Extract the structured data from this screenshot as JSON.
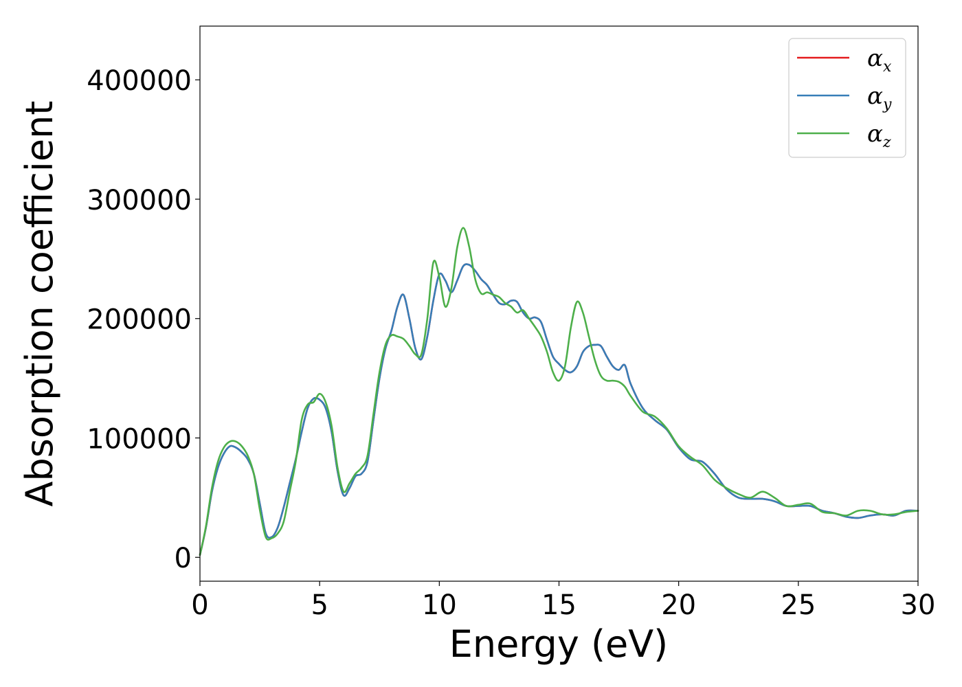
{
  "chart_data": {
    "type": "line",
    "title": "",
    "xlabel": "Energy (eV)",
    "ylabel": "Absorption coefficient",
    "xlim": [
      0,
      30
    ],
    "ylim": [
      -20000,
      445000
    ],
    "xticks": [
      0,
      5,
      10,
      15,
      20,
      25,
      30
    ],
    "yticks": [
      0,
      100000,
      200000,
      300000,
      400000
    ],
    "xtick_labels": [
      "0",
      "5",
      "10",
      "15",
      "20",
      "25",
      "30"
    ],
    "ytick_labels": [
      "0",
      "100000",
      "200000",
      "300000",
      "400000"
    ],
    "grid": false,
    "legend_position": "top-right",
    "series": [
      {
        "name": "α",
        "subscript": "x",
        "color": "#e41a1c",
        "x": [
          0,
          0.25,
          0.5,
          0.75,
          1.0,
          1.25,
          1.5,
          1.75,
          2.0,
          2.25,
          2.5,
          2.75,
          3.0,
          3.25,
          3.5,
          3.75,
          4.0,
          4.25,
          4.5,
          4.75,
          5.0,
          5.25,
          5.5,
          5.75,
          6.0,
          6.25,
          6.5,
          6.75,
          7.0,
          7.25,
          7.5,
          7.75,
          8.0,
          8.25,
          8.5,
          8.75,
          9.0,
          9.25,
          9.5,
          9.75,
          10.0,
          10.25,
          10.5,
          10.75,
          11.0,
          11.25,
          11.5,
          11.75,
          12.0,
          12.25,
          12.5,
          12.75,
          13.0,
          13.25,
          13.5,
          13.75,
          14.0,
          14.25,
          14.5,
          14.75,
          15.0,
          15.25,
          15.5,
          15.75,
          16.0,
          16.25,
          16.5,
          16.75,
          17.0,
          17.25,
          17.5,
          17.75,
          18.0,
          18.5,
          19.0,
          19.5,
          20.0,
          20.5,
          21.0,
          21.5,
          22.0,
          22.5,
          23.0,
          23.5,
          24.0,
          24.5,
          25.0,
          25.5,
          26.0,
          26.5,
          27.0,
          27.5,
          28.0,
          28.5,
          29.0,
          29.5,
          30.0
        ],
        "values": [
          2000,
          25000,
          55000,
          75000,
          87000,
          93000,
          92000,
          88000,
          82000,
          70000,
          45000,
          20000,
          17000,
          25000,
          42000,
          62000,
          82000,
          105000,
          125000,
          133000,
          132000,
          125000,
          105000,
          72000,
          52000,
          58000,
          68000,
          70000,
          80000,
          115000,
          150000,
          175000,
          190000,
          210000,
          220000,
          200000,
          175000,
          166000,
          185000,
          215000,
          237000,
          232000,
          222000,
          232000,
          244000,
          245000,
          240000,
          233000,
          228000,
          220000,
          213000,
          212000,
          215000,
          214000,
          205000,
          200000,
          201000,
          197000,
          182000,
          168000,
          162000,
          157000,
          155000,
          160000,
          172000,
          177000,
          178000,
          177000,
          168000,
          160000,
          157000,
          161000,
          145000,
          125000,
          115000,
          107000,
          92000,
          82000,
          80000,
          70000,
          57000,
          50000,
          49000,
          49000,
          47000,
          43000,
          43000,
          43000,
          39000,
          37000,
          34000,
          33000,
          35000,
          36000,
          35000,
          39000,
          39000
        ]
      },
      {
        "name": "α",
        "subscript": "y",
        "color": "#377eb8",
        "x": [
          0,
          0.25,
          0.5,
          0.75,
          1.0,
          1.25,
          1.5,
          1.75,
          2.0,
          2.25,
          2.5,
          2.75,
          3.0,
          3.25,
          3.5,
          3.75,
          4.0,
          4.25,
          4.5,
          4.75,
          5.0,
          5.25,
          5.5,
          5.75,
          6.0,
          6.25,
          6.5,
          6.75,
          7.0,
          7.25,
          7.5,
          7.75,
          8.0,
          8.25,
          8.5,
          8.75,
          9.0,
          9.25,
          9.5,
          9.75,
          10.0,
          10.25,
          10.5,
          10.75,
          11.0,
          11.25,
          11.5,
          11.75,
          12.0,
          12.25,
          12.5,
          12.75,
          13.0,
          13.25,
          13.5,
          13.75,
          14.0,
          14.25,
          14.5,
          14.75,
          15.0,
          15.25,
          15.5,
          15.75,
          16.0,
          16.25,
          16.5,
          16.75,
          17.0,
          17.25,
          17.5,
          17.75,
          18.0,
          18.5,
          19.0,
          19.5,
          20.0,
          20.5,
          21.0,
          21.5,
          22.0,
          22.5,
          23.0,
          23.5,
          24.0,
          24.5,
          25.0,
          25.5,
          26.0,
          26.5,
          27.0,
          27.5,
          28.0,
          28.5,
          29.0,
          29.5,
          30.0
        ],
        "values": [
          2000,
          25000,
          55000,
          75000,
          87000,
          93000,
          92000,
          88000,
          82000,
          70000,
          45000,
          20000,
          17000,
          25000,
          42000,
          62000,
          82000,
          105000,
          125000,
          133000,
          132000,
          125000,
          105000,
          72000,
          52000,
          58000,
          68000,
          70000,
          80000,
          115000,
          150000,
          175000,
          190000,
          210000,
          220000,
          200000,
          175000,
          166000,
          185000,
          215000,
          237000,
          232000,
          222000,
          232000,
          244000,
          245000,
          240000,
          233000,
          228000,
          220000,
          213000,
          212000,
          215000,
          214000,
          205000,
          200000,
          201000,
          197000,
          182000,
          168000,
          162000,
          157000,
          155000,
          160000,
          172000,
          177000,
          178000,
          177000,
          168000,
          160000,
          157000,
          161000,
          145000,
          125000,
          115000,
          107000,
          92000,
          82000,
          80000,
          70000,
          57000,
          50000,
          49000,
          49000,
          47000,
          43000,
          43000,
          43000,
          39000,
          37000,
          34000,
          33000,
          35000,
          36000,
          35000,
          39000,
          39000
        ]
      },
      {
        "name": "α",
        "subscript": "z",
        "color": "#4daf4a",
        "x": [
          0,
          0.25,
          0.5,
          0.75,
          1.0,
          1.25,
          1.5,
          1.75,
          2.0,
          2.25,
          2.5,
          2.75,
          3.0,
          3.25,
          3.5,
          3.75,
          4.0,
          4.25,
          4.5,
          4.75,
          5.0,
          5.25,
          5.5,
          5.75,
          6.0,
          6.25,
          6.5,
          6.75,
          7.0,
          7.25,
          7.5,
          7.75,
          8.0,
          8.25,
          8.5,
          8.75,
          9.0,
          9.25,
          9.5,
          9.75,
          10.0,
          10.25,
          10.5,
          10.75,
          11.0,
          11.25,
          11.5,
          11.75,
          12.0,
          12.25,
          12.5,
          12.75,
          13.0,
          13.25,
          13.5,
          13.75,
          14.0,
          14.25,
          14.5,
          14.75,
          15.0,
          15.25,
          15.5,
          15.75,
          16.0,
          16.25,
          16.5,
          16.75,
          17.0,
          17.25,
          17.5,
          17.75,
          18.0,
          18.5,
          19.0,
          19.5,
          20.0,
          20.5,
          21.0,
          21.5,
          22.0,
          22.5,
          23.0,
          23.5,
          24.0,
          24.5,
          25.0,
          25.5,
          26.0,
          26.5,
          27.0,
          27.5,
          28.0,
          28.5,
          29.0,
          29.5,
          30.0
        ],
        "values": [
          2000,
          26000,
          58000,
          80000,
          92000,
          97000,
          97000,
          93000,
          85000,
          70000,
          40000,
          17000,
          16000,
          20000,
          30000,
          55000,
          80000,
          115000,
          128000,
          130000,
          137000,
          130000,
          110000,
          75000,
          55000,
          62000,
          70000,
          75000,
          85000,
          120000,
          155000,
          178000,
          186000,
          185000,
          183000,
          177000,
          170000,
          170000,
          200000,
          247000,
          235000,
          210000,
          225000,
          260000,
          276000,
          260000,
          233000,
          221000,
          222000,
          220000,
          218000,
          213000,
          210000,
          205000,
          207000,
          200000,
          193000,
          185000,
          172000,
          155000,
          148000,
          160000,
          193000,
          214000,
          205000,
          185000,
          165000,
          152000,
          148000,
          148000,
          147000,
          143000,
          135000,
          122000,
          118000,
          108000,
          93000,
          84000,
          77000,
          65000,
          58000,
          53000,
          50000,
          55000,
          50000,
          43000,
          44000,
          45000,
          38000,
          37000,
          35000,
          39000,
          39000,
          36000,
          36000,
          38000,
          39000
        ]
      }
    ]
  }
}
